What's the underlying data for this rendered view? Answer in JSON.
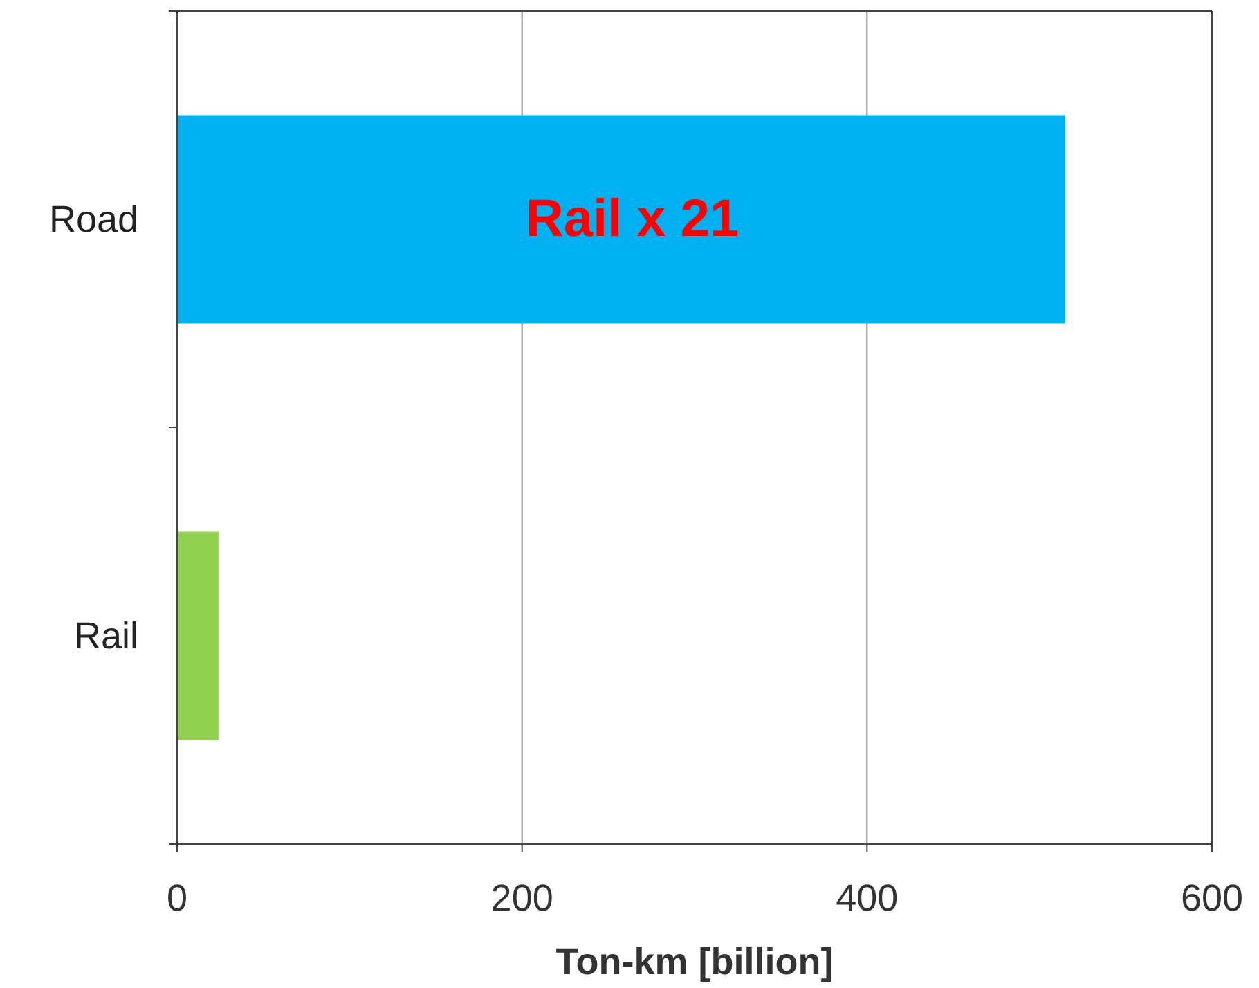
{
  "chart_data": {
    "type": "bar",
    "orientation": "horizontal",
    "categories": [
      "Road",
      "Rail"
    ],
    "values": [
      515,
      24
    ],
    "colors": [
      "#00b0f0",
      "#92d050"
    ],
    "xlim": [
      0,
      600
    ],
    "xticks": [
      0,
      200,
      400,
      600
    ],
    "xlabel": "Ton-km [billion]",
    "grid": "x",
    "annotations": [
      "Rail x 21"
    ]
  }
}
